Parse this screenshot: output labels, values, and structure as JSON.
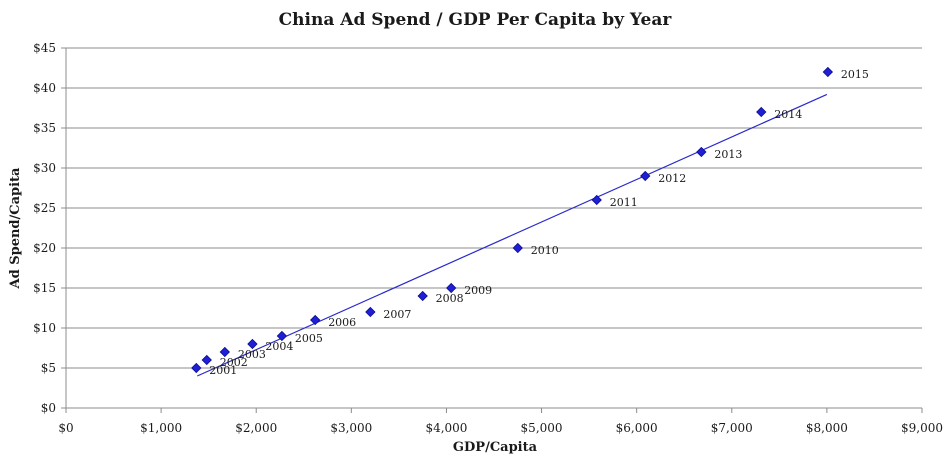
{
  "chart_data": {
    "type": "scatter",
    "title": "China Ad Spend / GDP Per Capita by Year",
    "xlabel": "GDP/Capita",
    "ylabel": "Ad Spend/Capita",
    "xlim": [
      0,
      9000
    ],
    "ylim": [
      0,
      45
    ],
    "x_ticks": [
      "$0",
      "$1,000",
      "$2,000",
      "$3,000",
      "$4,000",
      "$5,000",
      "$6,000",
      "$7,000",
      "$8,000",
      "$9,000"
    ],
    "x_tick_values": [
      0,
      1000,
      2000,
      3000,
      4000,
      5000,
      6000,
      7000,
      8000,
      9000
    ],
    "y_ticks": [
      "$0",
      "$5",
      "$10",
      "$15",
      "$20",
      "$25",
      "$30",
      "$35",
      "$40",
      "$45"
    ],
    "y_tick_values": [
      0,
      5,
      10,
      15,
      20,
      25,
      30,
      35,
      40,
      45
    ],
    "grid": "horizontal",
    "marker_color": "#1f1fd6",
    "trendline_color": "#2a2acc",
    "trendline": [
      [
        1380,
        4
      ],
      [
        8000,
        39.2
      ]
    ],
    "points": [
      {
        "label": "2001",
        "x": 1370,
        "y": 5
      },
      {
        "label": "2002",
        "x": 1480,
        "y": 6
      },
      {
        "label": "2003",
        "x": 1670,
        "y": 7
      },
      {
        "label": "2004",
        "x": 1960,
        "y": 8
      },
      {
        "label": "2005",
        "x": 2270,
        "y": 9
      },
      {
        "label": "2006",
        "x": 2620,
        "y": 11
      },
      {
        "label": "2007",
        "x": 3200,
        "y": 12
      },
      {
        "label": "2008",
        "x": 3750,
        "y": 14
      },
      {
        "label": "2009",
        "x": 4050,
        "y": 15
      },
      {
        "label": "2010",
        "x": 4750,
        "y": 20
      },
      {
        "label": "2011",
        "x": 5580,
        "y": 26
      },
      {
        "label": "2012",
        "x": 6090,
        "y": 29
      },
      {
        "label": "2013",
        "x": 6680,
        "y": 32
      },
      {
        "label": "2014",
        "x": 7310,
        "y": 37
      },
      {
        "label": "2015",
        "x": 8010,
        "y": 42
      }
    ]
  }
}
